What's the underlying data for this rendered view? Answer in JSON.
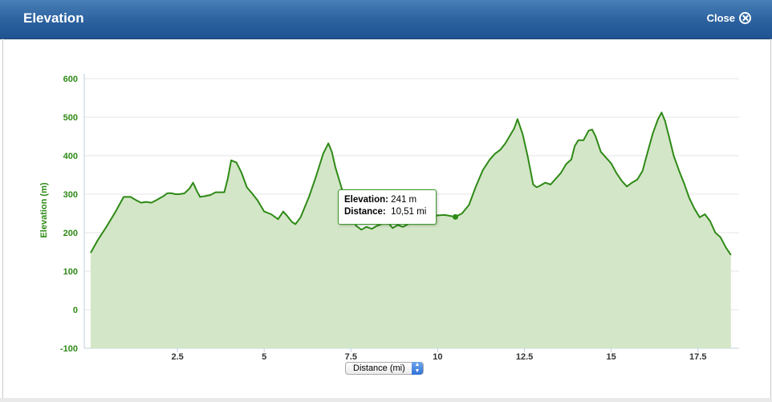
{
  "window": {
    "title": "Elevation",
    "close_label": "Close"
  },
  "tooltip": {
    "elevation_label": "Elevation:",
    "elevation_value": "241 m",
    "distance_label": "Distance:",
    "distance_value": "10,51 mi"
  },
  "x_axis_select": {
    "selected": "Distance (mi)"
  },
  "colors": {
    "line": "#2e8a16",
    "fill": "#d4e6c8",
    "axis_text": "#2e8a16",
    "titlebar": "#2d63a0"
  },
  "chart_data": {
    "type": "area",
    "title": "",
    "xlabel": "Distance (mi)",
    "ylabel": "Elevation (m)",
    "xlim": [
      0,
      18.5
    ],
    "ylim": [
      -100,
      600
    ],
    "x_ticks": [
      2.5,
      5,
      7.5,
      10,
      12.5,
      15,
      17.5
    ],
    "x_tick_labels": [
      "2.5",
      "5",
      "7.5",
      "10",
      "12.5",
      "15",
      "17.5"
    ],
    "y_ticks": [
      -100,
      0,
      100,
      200,
      300,
      400,
      500,
      600
    ],
    "y_tick_labels": [
      "-100",
      "0",
      "100",
      "200",
      "300",
      "400",
      "500",
      "600"
    ],
    "grid": true,
    "highlight": {
      "x": 10.51,
      "y": 241
    },
    "series": [
      {
        "x": [
          0,
          0.2,
          0.45,
          0.7,
          0.95,
          1.15,
          1.3,
          1.45,
          1.6,
          1.75,
          1.9,
          2.0,
          2.1,
          2.2,
          2.3,
          2.45,
          2.55,
          2.7,
          2.85,
          2.95,
          3.05,
          3.15,
          3.3,
          3.45,
          3.6,
          3.7,
          3.85,
          3.95,
          4.05,
          4.2,
          4.35,
          4.5,
          4.65,
          4.8,
          5.0,
          5.2,
          5.4,
          5.55,
          5.65,
          5.8,
          5.9,
          6.05,
          6.15,
          6.3,
          6.5,
          6.7,
          6.85,
          6.95,
          7.05,
          7.2,
          7.35,
          7.5,
          7.65,
          7.8,
          7.95,
          8.1,
          8.25,
          8.4,
          8.55,
          8.7,
          8.85,
          9.0,
          9.2,
          9.4,
          9.6,
          9.8,
          10.0,
          10.2,
          10.4,
          10.51,
          10.7,
          10.9,
          11.1,
          11.3,
          11.5,
          11.65,
          11.8,
          11.95,
          12.1,
          12.2,
          12.3,
          12.45,
          12.6,
          12.75,
          12.85,
          12.95,
          13.1,
          13.25,
          13.4,
          13.55,
          13.7,
          13.85,
          13.95,
          14.05,
          14.2,
          14.35,
          14.45,
          14.55,
          14.7,
          14.85,
          15.0,
          15.15,
          15.3,
          15.45,
          15.6,
          15.75,
          15.9,
          16.05,
          16.2,
          16.35,
          16.45,
          16.55,
          16.65,
          16.8,
          16.95,
          17.1,
          17.25,
          17.4,
          17.55,
          17.7,
          17.85,
          18.0,
          18.15,
          18.3,
          18.45
        ],
        "values": [
          148,
          180,
          215,
          252,
          293,
          293,
          285,
          278,
          280,
          278,
          285,
          290,
          295,
          302,
          303,
          300,
          300,
          302,
          315,
          330,
          310,
          293,
          295,
          298,
          305,
          305,
          305,
          340,
          388,
          382,
          355,
          318,
          302,
          285,
          255,
          248,
          235,
          255,
          245,
          228,
          222,
          240,
          262,
          295,
          348,
          405,
          432,
          410,
          370,
          325,
          280,
          245,
          218,
          208,
          215,
          210,
          218,
          223,
          228,
          212,
          220,
          215,
          225,
          232,
          232,
          240,
          245,
          246,
          243,
          241,
          250,
          272,
          320,
          362,
          390,
          405,
          415,
          432,
          455,
          470,
          495,
          455,
          395,
          325,
          318,
          322,
          330,
          325,
          340,
          355,
          378,
          390,
          425,
          440,
          440,
          465,
          468,
          450,
          410,
          395,
          380,
          355,
          335,
          320,
          330,
          338,
          360,
          410,
          458,
          495,
          512,
          490,
          455,
          400,
          362,
          328,
          290,
          262,
          240,
          248,
          230,
          200,
          188,
          162,
          142
        ]
      }
    ]
  }
}
